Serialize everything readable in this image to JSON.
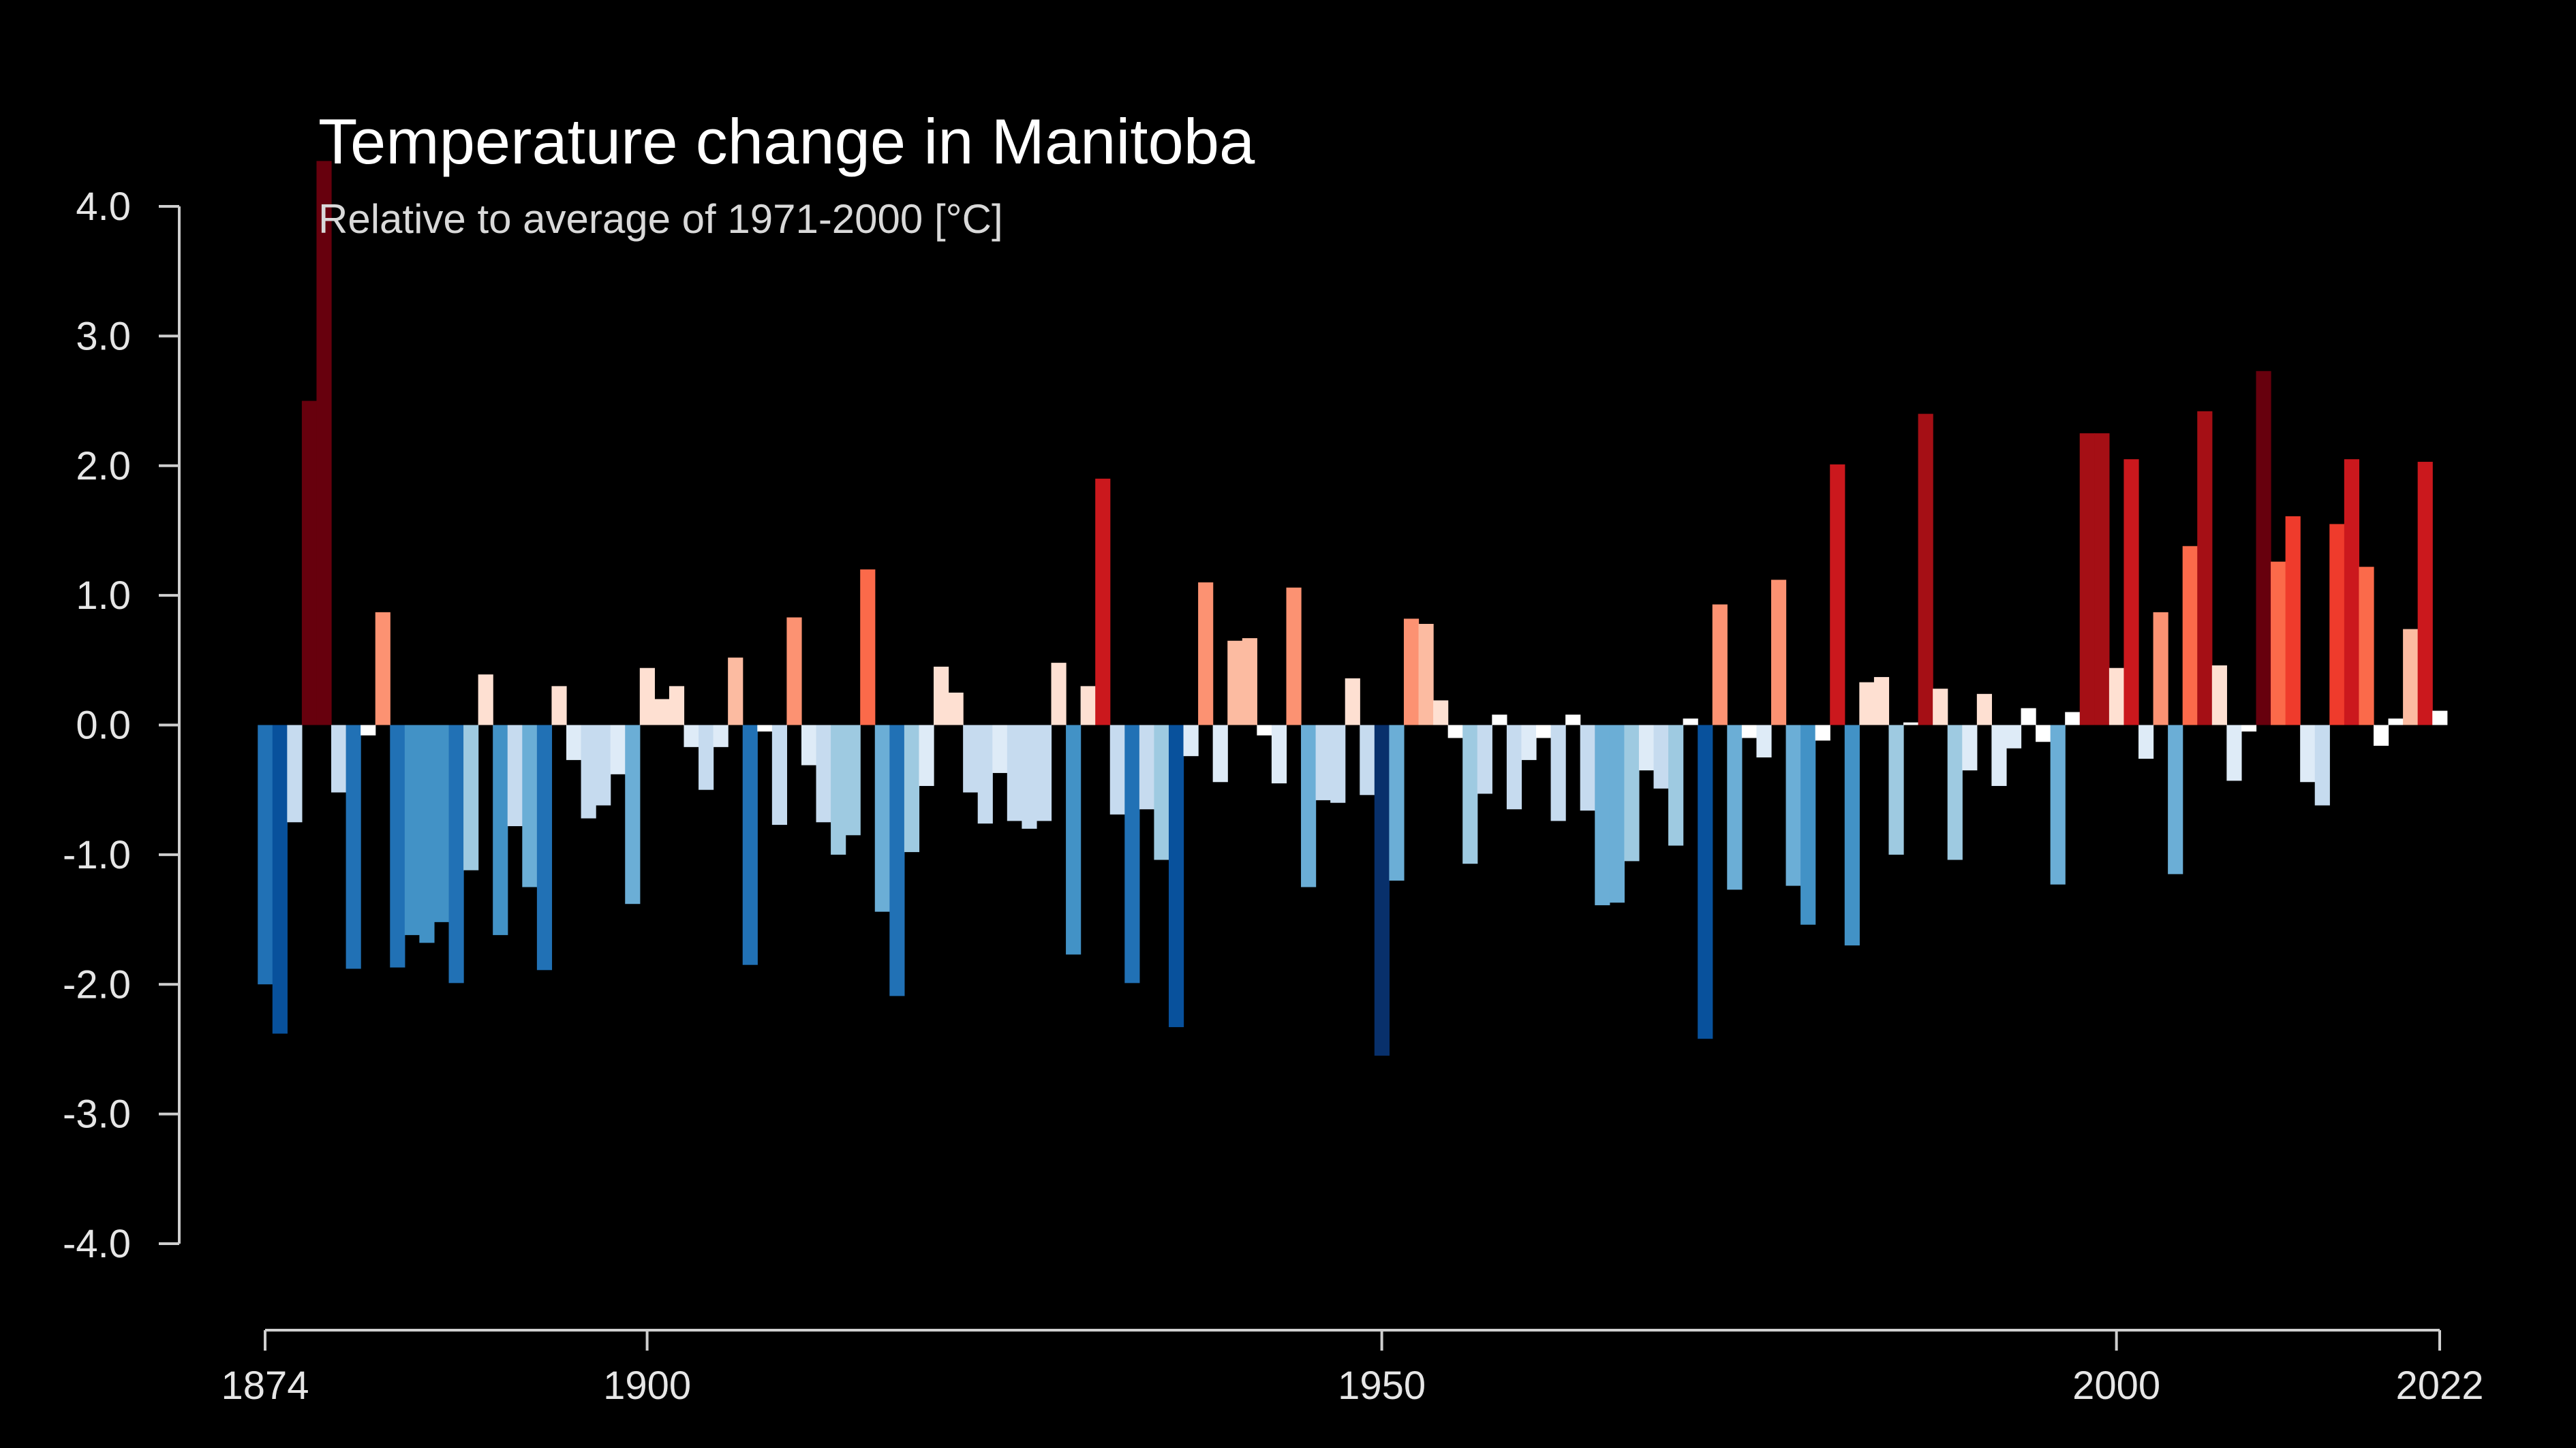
{
  "chart_data": {
    "type": "bar",
    "title": "Temperature change in Manitoba",
    "subtitle": "Relative to average of 1971-2000  [°C]",
    "xlabel": "",
    "ylabel": "",
    "ylim": [
      -4.0,
      4.0
    ],
    "xlim": [
      1874,
      2022
    ],
    "grid": false,
    "yticks": [
      "4.0",
      "3.0",
      "2.0",
      "1.0",
      "0.0",
      "-1.0",
      "-2.0",
      "-3.0",
      "-4.0"
    ],
    "xticks": [
      "1874",
      "1900",
      "1950",
      "2000",
      "2022"
    ],
    "x": [
      1874,
      1875,
      1876,
      1877,
      1878,
      1879,
      1880,
      1881,
      1882,
      1883,
      1884,
      1885,
      1886,
      1887,
      1888,
      1889,
      1890,
      1891,
      1892,
      1893,
      1894,
      1895,
      1896,
      1897,
      1898,
      1899,
      1900,
      1901,
      1902,
      1903,
      1904,
      1905,
      1906,
      1907,
      1908,
      1909,
      1910,
      1911,
      1912,
      1913,
      1914,
      1915,
      1916,
      1917,
      1918,
      1919,
      1920,
      1921,
      1922,
      1923,
      1924,
      1925,
      1926,
      1927,
      1928,
      1929,
      1930,
      1931,
      1932,
      1933,
      1934,
      1935,
      1936,
      1937,
      1938,
      1939,
      1940,
      1941,
      1942,
      1943,
      1944,
      1945,
      1946,
      1947,
      1948,
      1949,
      1950,
      1951,
      1952,
      1953,
      1954,
      1955,
      1956,
      1957,
      1958,
      1959,
      1960,
      1961,
      1962,
      1963,
      1964,
      1965,
      1966,
      1967,
      1968,
      1969,
      1970,
      1971,
      1972,
      1973,
      1974,
      1975,
      1976,
      1977,
      1978,
      1979,
      1980,
      1981,
      1982,
      1983,
      1984,
      1985,
      1986,
      1987,
      1988,
      1989,
      1990,
      1991,
      1992,
      1993,
      1994,
      1995,
      1996,
      1997,
      1998,
      1999,
      2000,
      2001,
      2002,
      2003,
      2004,
      2005,
      2006,
      2007,
      2008,
      2009,
      2010,
      2011,
      2012,
      2013,
      2014,
      2015,
      2016,
      2017,
      2018,
      2019,
      2020,
      2021,
      2022
    ],
    "series": [
      {
        "values": [
          -2.0,
          -2.38,
          -0.75,
          2.5,
          4.35,
          -0.52,
          -1.88,
          -0.08,
          0.87,
          -1.87,
          -1.62,
          -1.68,
          -1.52,
          -1.99,
          -1.12,
          0.39,
          -1.62,
          -0.78,
          -1.25,
          -1.89,
          0.3,
          -0.27,
          -0.72,
          -0.62,
          -0.38,
          -1.38,
          0.44,
          0.2,
          0.3,
          -0.17,
          -0.5,
          -0.17,
          0.52,
          -1.85,
          -0.05,
          -0.77,
          0.83,
          -0.31,
          -0.75,
          -1.0,
          -0.85,
          1.2,
          -1.44,
          -2.09,
          -0.98,
          -0.47,
          0.45,
          0.25,
          -0.52,
          -0.76,
          -0.37,
          -0.74,
          -0.8,
          -0.74,
          0.48,
          -1.77,
          0.3,
          1.9,
          -0.69,
          -1.99,
          -0.65,
          -1.04,
          -2.33,
          -0.24,
          1.1,
          -0.44,
          0.65,
          0.67,
          -0.08,
          -0.45,
          1.06,
          -1.25,
          -0.58,
          -0.6,
          0.36,
          -0.54,
          -2.55,
          -1.2,
          0.82,
          0.78,
          0.19,
          -0.1,
          -1.07,
          -0.53,
          0.08,
          -0.65,
          -0.27,
          -0.1,
          -0.74,
          0.08,
          -0.66,
          -1.39,
          -1.37,
          -1.05,
          -0.35,
          -0.49,
          -0.93,
          0.05,
          -2.42,
          0.93,
          -1.27,
          -0.1,
          -0.25,
          1.12,
          -1.24,
          -1.54,
          -0.12,
          2.01,
          -1.7,
          0.33,
          0.37,
          -1.0,
          0.02,
          2.4,
          0.28,
          -1.04,
          -0.35,
          0.24,
          -0.47,
          -0.18,
          0.13,
          -0.13,
          -1.23,
          0.1,
          2.25,
          2.25,
          0.44,
          2.05,
          -0.26,
          0.87,
          -1.15,
          1.38,
          2.42,
          0.46,
          -0.43,
          -0.05,
          2.73,
          1.26,
          1.61,
          -0.44,
          -0.62,
          1.55,
          2.05,
          1.22,
          -0.16,
          0.05,
          0.74,
          2.03,
          0.11
        ]
      }
    ],
    "color_scale": [
      "#08306b",
      "#08519c",
      "#2171b5",
      "#4292c6",
      "#6baed6",
      "#9ecae1",
      "#c6dbef",
      "#deebf7",
      "#ffffff",
      "#fee0d2",
      "#fcbba1",
      "#fc9272",
      "#fb6a4a",
      "#ef3b2c",
      "#cb181d",
      "#a50f15",
      "#67000d"
    ]
  }
}
